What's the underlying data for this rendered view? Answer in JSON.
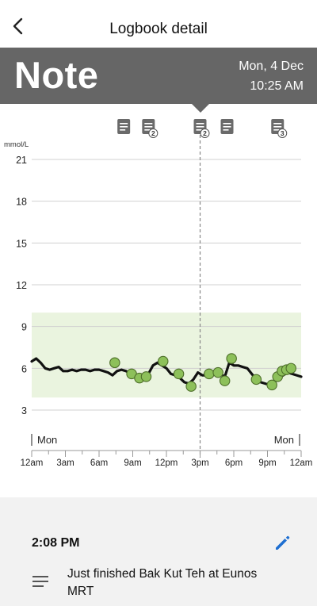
{
  "header": {
    "title": "Logbook detail",
    "back_icon": "chevron-left-icon"
  },
  "banner": {
    "title": "Note",
    "date": "Mon, 4 Dec",
    "time": "10:25 AM",
    "background": "#666666"
  },
  "chart_data": {
    "type": "line",
    "ylabel": "mmol/L",
    "yticks": [
      "21",
      "18",
      "15",
      "12",
      "9",
      "6",
      "3"
    ],
    "ylim": [
      0,
      21
    ],
    "xlim": [
      0,
      24
    ],
    "xticks": [
      "12am",
      "3am",
      "6am",
      "9am",
      "12pm",
      "3pm",
      "6pm",
      "9pm",
      "12am"
    ],
    "day_labels": {
      "start": "Mon",
      "end": "Mon"
    },
    "target_range": [
      3.9,
      10.0
    ],
    "target_color": "#eaf4df",
    "line_color": "#111111",
    "point_color": "#8dc05a",
    "selected_time": 15.0,
    "series": [
      {
        "x": [
          0,
          0.4,
          0.8,
          1.2,
          1.6,
          2.0,
          2.4,
          2.8,
          3.2,
          3.6,
          4.0,
          4.4,
          4.8,
          5.2,
          5.6,
          6.0,
          6.4,
          6.8,
          7.2,
          7.6,
          8.0,
          8.4,
          8.8,
          9.2,
          9.6,
          10.0,
          10.4,
          10.8,
          11.2,
          11.6,
          12.0,
          12.4,
          12.8,
          13.2,
          13.6,
          14.0,
          14.4,
          14.8,
          15.2,
          15.6,
          16.0,
          16.4,
          16.8,
          17.2,
          17.6,
          18.0,
          18.4,
          18.8,
          19.2,
          19.6,
          20.0,
          20.4,
          20.8,
          21.2,
          21.6,
          22.0,
          22.4,
          22.8,
          23.2,
          23.6,
          24.0
        ],
        "y": [
          6.5,
          6.7,
          6.4,
          6.0,
          5.9,
          6.0,
          6.1,
          5.8,
          5.8,
          5.9,
          5.8,
          5.9,
          5.9,
          5.8,
          5.9,
          5.9,
          5.8,
          5.7,
          5.5,
          5.8,
          5.9,
          5.8,
          5.6,
          5.5,
          5.4,
          5.2,
          5.6,
          6.2,
          6.4,
          6.2,
          6.0,
          5.6,
          5.5,
          5.3,
          5.0,
          4.9,
          5.2,
          5.7,
          5.5,
          5.5,
          5.6,
          5.7,
          5.6,
          5.4,
          6.4,
          6.2,
          6.2,
          6.1,
          6.0,
          5.6,
          5.2,
          5.0,
          4.9,
          4.8,
          5.0,
          5.3,
          5.5,
          5.7,
          5.6,
          5.5,
          5.4
        ]
      }
    ],
    "points": [
      {
        "x": 7.4,
        "y": 6.4
      },
      {
        "x": 8.9,
        "y": 5.6
      },
      {
        "x": 9.6,
        "y": 5.3
      },
      {
        "x": 10.2,
        "y": 5.4
      },
      {
        "x": 11.7,
        "y": 6.5
      },
      {
        "x": 13.1,
        "y": 5.6
      },
      {
        "x": 14.2,
        "y": 4.7
      },
      {
        "x": 15.8,
        "y": 5.6
      },
      {
        "x": 16.6,
        "y": 5.7
      },
      {
        "x": 17.2,
        "y": 5.1
      },
      {
        "x": 17.8,
        "y": 6.7
      },
      {
        "x": 20.0,
        "y": 5.2
      },
      {
        "x": 21.4,
        "y": 4.8
      },
      {
        "x": 21.9,
        "y": 5.4
      },
      {
        "x": 22.3,
        "y": 5.8
      },
      {
        "x": 22.7,
        "y": 5.9
      },
      {
        "x": 23.1,
        "y": 6.0
      }
    ],
    "note_markers": [
      {
        "x": 8.2,
        "count": ""
      },
      {
        "x": 10.4,
        "count": "2"
      },
      {
        "x": 15.0,
        "count": "2"
      },
      {
        "x": 17.4,
        "count": ""
      },
      {
        "x": 21.9,
        "count": "3"
      }
    ]
  },
  "note": {
    "time": "2:08 PM",
    "text": "Just finished Bak Kut Teh at Eunos MRT",
    "edit_icon": "pencil-icon",
    "note_icon": "text-lines-icon"
  }
}
